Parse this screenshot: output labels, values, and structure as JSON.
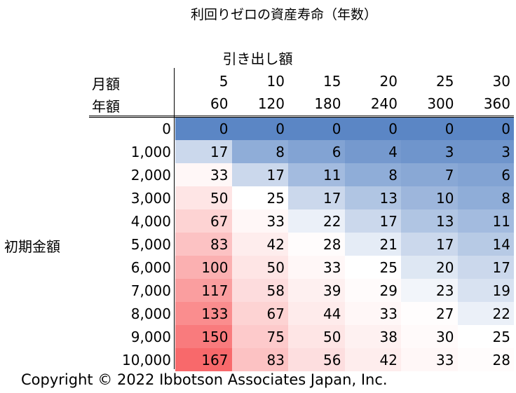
{
  "title": "利回りゼロの資産寿命（年数）",
  "x_axis_label": "引き出し額",
  "monthly_label": "月額",
  "annual_label": "年額",
  "y_axis_label": "初期金額",
  "copyright": "Copyright © 2022 Ibbotson Associates Japan, Inc.",
  "chart_data": {
    "type": "heatmap",
    "title": "利回りゼロの資産寿命（年数）",
    "xlabel": "引き出し額",
    "ylabel": "初期金額",
    "columns_monthly": [
      "5",
      "10",
      "15",
      "20",
      "25",
      "30"
    ],
    "columns_annual": [
      "60",
      "120",
      "180",
      "240",
      "300",
      "360"
    ],
    "rows": [
      "0",
      "1,000",
      "2,000",
      "3,000",
      "4,000",
      "5,000",
      "6,000",
      "7,000",
      "8,000",
      "9,000",
      "10,000"
    ],
    "values": [
      [
        0,
        0,
        0,
        0,
        0,
        0
      ],
      [
        17,
        8,
        6,
        4,
        3,
        3
      ],
      [
        33,
        17,
        11,
        8,
        7,
        6
      ],
      [
        50,
        25,
        17,
        13,
        10,
        8
      ],
      [
        67,
        33,
        22,
        17,
        13,
        11
      ],
      [
        83,
        42,
        28,
        21,
        17,
        14
      ],
      [
        100,
        50,
        33,
        25,
        20,
        17
      ],
      [
        117,
        58,
        39,
        29,
        23,
        19
      ],
      [
        133,
        67,
        44,
        33,
        27,
        22
      ],
      [
        150,
        75,
        50,
        38,
        30,
        25
      ],
      [
        167,
        83,
        56,
        42,
        33,
        28
      ]
    ],
    "colors": {
      "low": "#5b86c5",
      "mid": "#ffffff",
      "high": "#f8696b"
    },
    "midpoint": 25
  }
}
